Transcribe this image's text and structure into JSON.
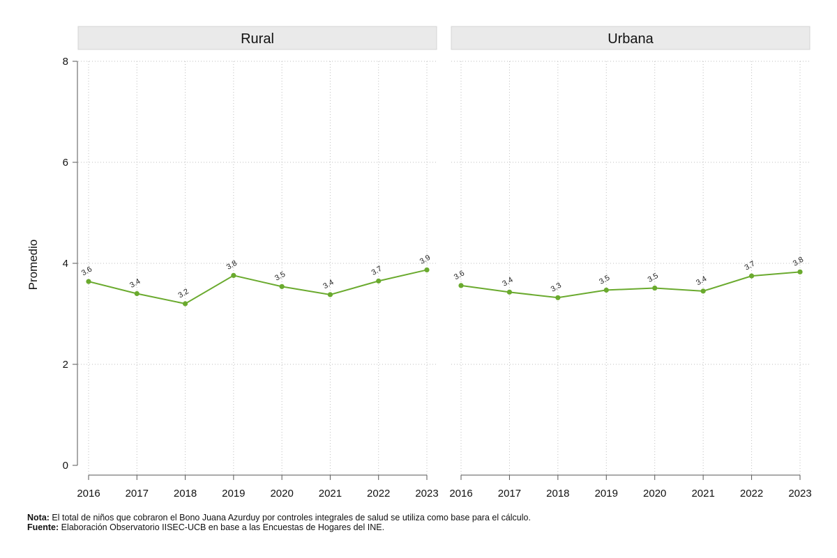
{
  "chart_data": {
    "type": "line",
    "ylabel": "Promedio",
    "ylim": [
      0,
      8
    ],
    "yticks": [
      0,
      2,
      4,
      6,
      8
    ],
    "categories": [
      "2016",
      "2017",
      "2018",
      "2019",
      "2020",
      "2021",
      "2022",
      "2023"
    ],
    "line_color": "#6aaa2e",
    "grid": "dotted",
    "panels": [
      {
        "title": "Rural",
        "values": [
          3.64,
          3.4,
          3.2,
          3.76,
          3.54,
          3.38,
          3.65,
          3.87
        ],
        "labels": [
          "3.6",
          "3.4",
          "3.2",
          "3.8",
          "3.5",
          "3.4",
          "3.7",
          "3.9"
        ]
      },
      {
        "title": "Urbana",
        "values": [
          3.56,
          3.43,
          3.32,
          3.47,
          3.51,
          3.45,
          3.75,
          3.83
        ],
        "labels": [
          "3.6",
          "3.4",
          "3.3",
          "3.5",
          "3.5",
          "3.4",
          "3.7",
          "3.8"
        ]
      }
    ]
  },
  "notes": {
    "nota_label": "Nota:",
    "nota_text": " El total de niños que cobraron el Bono Juana Azurduy por controles integrales de salud se utiliza como base para el cálculo.",
    "fuente_label": "Fuente:",
    "fuente_text": " Elaboración Observatorio IISEC-UCB en base a las Encuestas de Hogares del INE."
  }
}
